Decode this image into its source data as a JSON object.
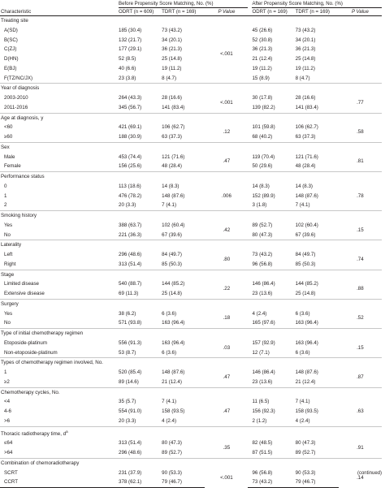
{
  "header": {
    "before_group": "Before Propensity Score Matching, No. (%)",
    "after_group": "After Propensity Score Matching, No. (%)",
    "characteristic": "Characteristic",
    "odrt_before": "ODRT (n = 609)",
    "tdrt_before": "TDRT (n = 169)",
    "p_value": "P Value",
    "odrt_after": "ODRT (n = 169)",
    "tdrt_after": "TDRT (n = 169)"
  },
  "sections": [
    {
      "title": "Treating site",
      "p_before": "<.001",
      "p_after": "",
      "rows": [
        {
          "label": "A(SD)",
          "odrt_b": "185 (30.4)",
          "tdrt_b": "73 (43.2)",
          "odrt_a": "45 (26.6)",
          "tdrt_a": "73 (43.2)"
        },
        {
          "label": "B(SC)",
          "odrt_b": "132 (21.7)",
          "tdrt_b": "34 (20.1)",
          "odrt_a": "52 (30.8)",
          "tdrt_a": "34 (20.1)"
        },
        {
          "label": "C(ZJ)",
          "odrt_b": "177 (29.1)",
          "tdrt_b": "36 (21.3)",
          "odrt_a": "36 (21.3)",
          "tdrt_a": "36 (21.3)"
        },
        {
          "label": "D(HN)",
          "odrt_b": "52 (8.5)",
          "tdrt_b": "25 (14.8)",
          "odrt_a": "21 (12.4)",
          "tdrt_a": "25 (14.8)"
        },
        {
          "label": "E(BJ)",
          "odrt_b": "40 (6.6)",
          "tdrt_b": "19 (11.2)",
          "odrt_a": "19 (11.2)",
          "tdrt_a": "19 (11.2)"
        },
        {
          "label": "F(TZ/NC/JX)",
          "odrt_b": "23 (3.8)",
          "tdrt_b": "8 (4.7)",
          "odrt_a": "15 (8.9)",
          "tdrt_a": "8 (4.7)"
        }
      ]
    },
    {
      "title": "Year of diagnosis",
      "p_before": "<.001",
      "p_after": ".77",
      "rows": [
        {
          "label": "2003-2010",
          "odrt_b": "264 (43.3)",
          "tdrt_b": "28 (16.6)",
          "odrt_a": "30 (17.8)",
          "tdrt_a": "28 (16.6)"
        },
        {
          "label": "2011-2016",
          "odrt_b": "345 (56.7)",
          "tdrt_b": "141 (83.4)",
          "odrt_a": "139 (82.2)",
          "tdrt_a": "141 (83.4)"
        }
      ]
    },
    {
      "title": "Age at diagnosis, y",
      "p_before": ".12",
      "p_after": ".58",
      "rows": [
        {
          "label": "<60",
          "odrt_b": "421 (69.1)",
          "tdrt_b": "106 (62.7)",
          "odrt_a": "101 (59.8)",
          "tdrt_a": "106 (62.7)"
        },
        {
          "label": "≥60",
          "odrt_b": "188 (30.9)",
          "tdrt_b": "63 (37.3)",
          "odrt_a": "68 (40.2)",
          "tdrt_a": "63 (37.3)"
        }
      ]
    },
    {
      "title": "Sex",
      "p_before": ".47",
      "p_after": ".81",
      "rows": [
        {
          "label": "Male",
          "odrt_b": "453 (74.4)",
          "tdrt_b": "121 (71.6)",
          "odrt_a": "119 (70.4)",
          "tdrt_a": "121 (71.6)"
        },
        {
          "label": "Female",
          "odrt_b": "156 (25.6)",
          "tdrt_b": "48 (28.4)",
          "odrt_a": "50 (29.6)",
          "tdrt_a": "48 (28.4)"
        }
      ]
    },
    {
      "title": "Performance status",
      "p_before": ".006",
      "p_after": ".78",
      "rows": [
        {
          "label": "0",
          "odrt_b": "113 (18.6)",
          "tdrt_b": "14 (8.3)",
          "odrt_a": "14 (8.3)",
          "tdrt_a": "14 (8.3)"
        },
        {
          "label": "1",
          "odrt_b": "476 (78.2)",
          "tdrt_b": "148 (87.6)",
          "odrt_a": "152 (89.9)",
          "tdrt_a": "148 (87.6)"
        },
        {
          "label": "2",
          "odrt_b": "20 (3.3)",
          "tdrt_b": "7 (4.1)",
          "odrt_a": "3 (1.8)",
          "tdrt_a": "7 (4.1)"
        }
      ]
    },
    {
      "title": "Smoking history",
      "p_before": ".42",
      "p_after": ".15",
      "rows": [
        {
          "label": "Yes",
          "odrt_b": "388 (63.7)",
          "tdrt_b": "102 (60.4)",
          "odrt_a": "89 (52.7)",
          "tdrt_a": "102 (60.4)"
        },
        {
          "label": "No",
          "odrt_b": "221 (36.3)",
          "tdrt_b": "67 (39.6)",
          "odrt_a": "80 (47.3)",
          "tdrt_a": "67 (39.6)"
        }
      ]
    },
    {
      "title": "Laterality",
      "p_before": ".80",
      "p_after": ".74",
      "rows": [
        {
          "label": "Left",
          "odrt_b": "296 (48.6)",
          "tdrt_b": "84 (49.7)",
          "odrt_a": "73 (43.2)",
          "tdrt_a": "84 (49.7)"
        },
        {
          "label": "Right",
          "odrt_b": "313 (51.4)",
          "tdrt_b": "85 (50.3)",
          "odrt_a": "96 (56.8)",
          "tdrt_a": "85 (50.3)"
        }
      ]
    },
    {
      "title": "Stage",
      "p_before": ".22",
      "p_after": ".88",
      "rows": [
        {
          "label": "Limited disease",
          "odrt_b": "540 (88.7)",
          "tdrt_b": "144 (85.2)",
          "odrt_a": "146 (86.4)",
          "tdrt_a": "144 (85.2)"
        },
        {
          "label": "Extensive disease",
          "odrt_b": "69 (11.3)",
          "tdrt_b": "25 (14.8)",
          "odrt_a": "23 (13.6)",
          "tdrt_a": "25 (14.8)"
        }
      ]
    },
    {
      "title": "Surgery",
      "p_before": ".18",
      "p_after": ".52",
      "rows": [
        {
          "label": "Yes",
          "odrt_b": "38 (6.2)",
          "tdrt_b": "6 (3.6)",
          "odrt_a": "4 (2.4)",
          "tdrt_a": "6 (3.6)"
        },
        {
          "label": "No",
          "odrt_b": "571 (93.8)",
          "tdrt_b": "163 (96.4)",
          "odrt_a": "165 (97.6)",
          "tdrt_a": "163 (96.4)"
        }
      ]
    },
    {
      "title": "Type of initial chemotherapy regimen",
      "p_before": ".03",
      "p_after": ".15",
      "rows": [
        {
          "label": "Etoposide-platinum",
          "odrt_b": "556 (91.3)",
          "tdrt_b": "163 (96.4)",
          "odrt_a": "157 (92.9)",
          "tdrt_a": "163 (96.4)"
        },
        {
          "label": "Non-etoposide-platinum",
          "odrt_b": "53 (8.7)",
          "tdrt_b": "6 (3.6)",
          "odrt_a": "12 (7.1)",
          "tdrt_a": "6 (3.6)"
        }
      ]
    },
    {
      "title": "Types of chemotherapy regimen involved, No.",
      "p_before": ".47",
      "p_after": ".87",
      "rows": [
        {
          "label": "1",
          "odrt_b": "520 (85.4)",
          "tdrt_b": "148 (87.6)",
          "odrt_a": "146 (86.4)",
          "tdrt_a": "148 (87.6)"
        },
        {
          "label": "≥2",
          "odrt_b": "89 (14.6)",
          "tdrt_b": "21 (12.4)",
          "odrt_a": "23 (13.6)",
          "tdrt_a": "21 (12.4)"
        }
      ]
    },
    {
      "title": "Chemotherapy cycles, No.",
      "p_before": ".47",
      "p_after": ".63",
      "rows": [
        {
          "label": "<4",
          "odrt_b": "35 (5.7)",
          "tdrt_b": "7 (4.1)",
          "odrt_a": "11 (6.5)",
          "tdrt_a": "7 (4.1)"
        },
        {
          "label": "4-6",
          "odrt_b": "554 (91.0)",
          "tdrt_b": "158 (93.5)",
          "odrt_a": "156 (92.3)",
          "tdrt_a": "158 (93.5)"
        },
        {
          "label": ">6",
          "odrt_b": "20 (3.3)",
          "tdrt_b": "4 (2.4)",
          "odrt_a": "2 (1.2)",
          "tdrt_a": "4 (2.4)"
        }
      ]
    },
    {
      "title": "Thoracic radiotherapy time, d",
      "sup": "a",
      "p_before": ".35",
      "p_after": ".91",
      "rows": [
        {
          "label": "≤64",
          "odrt_b": "313 (51.4)",
          "tdrt_b": "80 (47.3)",
          "odrt_a": "82 (48.5)",
          "tdrt_a": "80 (47.3)"
        },
        {
          "label": ">64",
          "odrt_b": "296 (48.6)",
          "tdrt_b": "89 (52.7)",
          "odrt_a": "87 (51.5)",
          "tdrt_a": "89 (52.7)"
        }
      ]
    },
    {
      "title": "Combination of chemoradiotherapy",
      "p_before": "<.001",
      "p_after": ".14",
      "rows": [
        {
          "label": "SCRT",
          "odrt_b": "231 (37.9)",
          "tdrt_b": "90 (53.3)",
          "odrt_a": "96 (56.8)",
          "tdrt_a": "90 (53.3)"
        },
        {
          "label": "CCRT",
          "odrt_b": "378 (62.1)",
          "tdrt_b": "79 (46.7)",
          "odrt_a": "73 (43.2)",
          "tdrt_a": "79 (46.7)"
        }
      ]
    }
  ],
  "footer": {
    "continued": "(continued)"
  }
}
